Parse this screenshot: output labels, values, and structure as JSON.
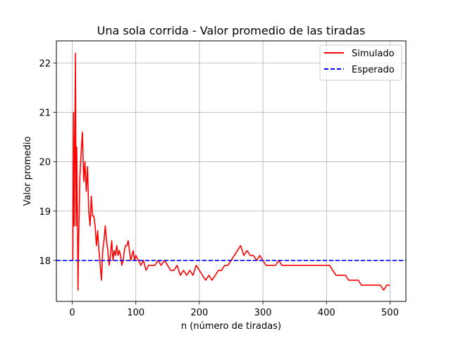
{
  "chart_data": {
    "type": "line",
    "title": "Una sola corrida  - Valor promedio de las tiradas",
    "xlabel": "n (número de tiradas)",
    "ylabel": "Valor promedio",
    "xlim": [
      -25,
      525
    ],
    "ylim": [
      17.17,
      22.45
    ],
    "xticks": [
      0,
      100,
      200,
      300,
      400,
      500
    ],
    "yticks": [
      18,
      19,
      20,
      21,
      22
    ],
    "grid": true,
    "legend_position": "top-right",
    "series": [
      {
        "name": "Simulado",
        "color": "#ff0000",
        "style": "solid",
        "x": [
          1,
          2,
          3,
          4,
          5,
          6,
          7,
          8,
          9,
          10,
          12,
          14,
          16,
          18,
          20,
          22,
          24,
          26,
          28,
          30,
          32,
          34,
          36,
          38,
          40,
          42,
          44,
          46,
          48,
          50,
          52,
          54,
          56,
          58,
          60,
          62,
          64,
          66,
          68,
          70,
          72,
          74,
          76,
          78,
          80,
          82,
          84,
          86,
          88,
          90,
          92,
          94,
          96,
          98,
          100,
          104,
          108,
          112,
          116,
          120,
          125,
          130,
          135,
          140,
          145,
          150,
          155,
          160,
          165,
          170,
          175,
          180,
          185,
          190,
          195,
          200,
          205,
          210,
          215,
          220,
          225,
          230,
          235,
          240,
          245,
          250,
          255,
          260,
          265,
          270,
          275,
          280,
          285,
          290,
          295,
          300,
          305,
          310,
          315,
          320,
          325,
          330,
          335,
          340,
          345,
          350,
          355,
          360,
          365,
          370,
          375,
          380,
          385,
          390,
          395,
          400,
          405,
          410,
          415,
          420,
          425,
          430,
          435,
          440,
          445,
          450,
          455,
          460,
          465,
          470,
          475,
          480,
          485,
          490,
          495,
          500
        ],
        "y": [
          18.0,
          21.0,
          18.7,
          20.4,
          22.2,
          18.7,
          20.3,
          19.0,
          17.4,
          18.4,
          19.7,
          20.2,
          20.6,
          19.6,
          20.0,
          19.4,
          19.9,
          19.0,
          18.7,
          19.3,
          18.9,
          18.9,
          18.7,
          18.3,
          18.6,
          18.2,
          17.9,
          17.6,
          18.2,
          18.4,
          18.7,
          18.4,
          18.2,
          17.9,
          18.1,
          18.4,
          18.0,
          18.2,
          18.1,
          18.3,
          18.1,
          18.2,
          18.1,
          17.9,
          18.0,
          18.2,
          18.3,
          18.3,
          18.4,
          18.2,
          18.0,
          18.1,
          18.2,
          18.0,
          18.1,
          18.0,
          17.9,
          18.0,
          17.8,
          17.9,
          17.9,
          17.9,
          18.0,
          17.9,
          18.0,
          17.9,
          17.8,
          17.8,
          17.9,
          17.7,
          17.8,
          17.7,
          17.8,
          17.7,
          17.9,
          17.8,
          17.7,
          17.6,
          17.7,
          17.6,
          17.7,
          17.8,
          17.8,
          17.9,
          17.9,
          18.0,
          18.1,
          18.2,
          18.3,
          18.1,
          18.2,
          18.1,
          18.1,
          18.0,
          18.1,
          18.0,
          17.9,
          17.9,
          17.9,
          17.9,
          18.0,
          17.9,
          17.9,
          17.9,
          17.9,
          17.9,
          17.9,
          17.9,
          17.9,
          17.9,
          17.9,
          17.9,
          17.9,
          17.9,
          17.9,
          17.9,
          17.9,
          17.8,
          17.7,
          17.7,
          17.7,
          17.7,
          17.6,
          17.6,
          17.6,
          17.6,
          17.5,
          17.5,
          17.5,
          17.5,
          17.5,
          17.5,
          17.5,
          17.4,
          17.5,
          17.5
        ]
      },
      {
        "name": "Esperado",
        "color": "#0000ff",
        "style": "dashed",
        "y_constant": 18.0
      }
    ]
  }
}
